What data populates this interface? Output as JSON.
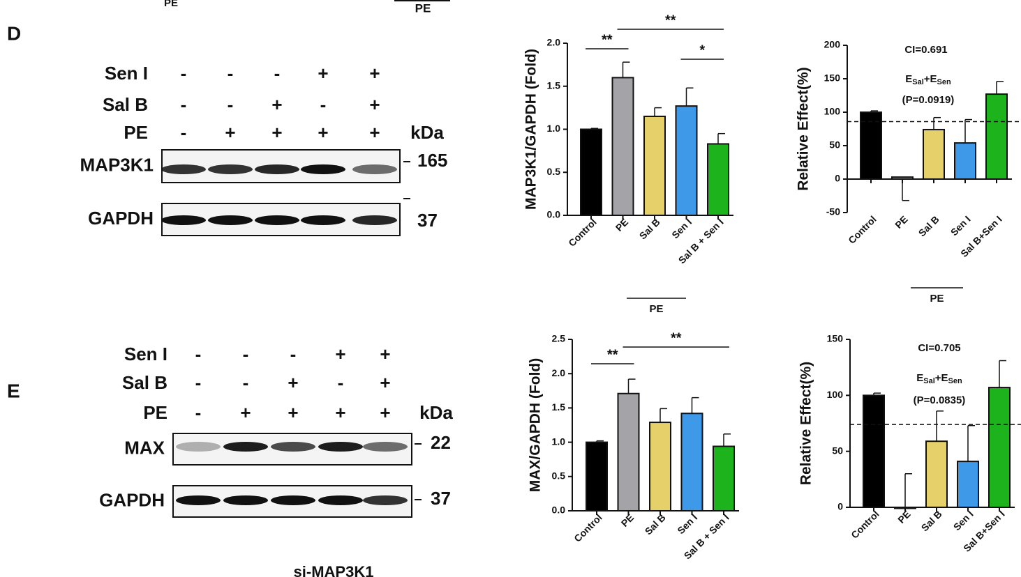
{
  "fragments": [
    "PE",
    "PE",
    "si-MAP3K1"
  ],
  "blots": [
    {
      "panel": "D",
      "unit": "kDa",
      "rows": [
        {
          "label": "Sen I",
          "signs": [
            "-",
            "-",
            "-",
            "+",
            "+"
          ]
        },
        {
          "label": "Sal B",
          "signs": [
            "-",
            "-",
            "+",
            "-",
            "+"
          ]
        },
        {
          "label": "PE",
          "signs": [
            "-",
            "+",
            "+",
            "+",
            "+"
          ]
        }
      ],
      "bands": [
        {
          "label": "MAP3K1",
          "marker": "165"
        },
        {
          "label": "GAPDH",
          "marker": "37"
        }
      ]
    },
    {
      "panel": "E",
      "unit": "kDa",
      "rows": [
        {
          "label": "Sen I",
          "signs": [
            "-",
            "-",
            "-",
            "+",
            "+"
          ]
        },
        {
          "label": "Sal B",
          "signs": [
            "-",
            "-",
            "+",
            "-",
            "+"
          ]
        },
        {
          "label": "PE",
          "signs": [
            "-",
            "+",
            "+",
            "+",
            "+"
          ]
        }
      ],
      "bands": [
        {
          "label": "MAX",
          "marker": "22"
        },
        {
          "label": "GAPDH",
          "marker": "37"
        }
      ]
    }
  ],
  "chart_data": [
    {
      "type": "bar",
      "y_label": "MAP3K1/GAPDH (Fold)",
      "categories": [
        "Control",
        "PE",
        "Sal B",
        "Sen I",
        "Sal B + Sen I"
      ],
      "values": [
        1.0,
        1.6,
        1.15,
        1.27,
        0.83
      ],
      "errors": [
        0.01,
        0.18,
        0.1,
        0.21,
        0.12
      ],
      "colors": [
        "#000000",
        "#a3a3a8",
        "#e6d06a",
        "#3e9ae8",
        "#1db31d"
      ],
      "ylim": [
        0,
        2.0
      ],
      "yticks": [
        {
          "value": 0,
          "label": "0.0"
        },
        {
          "value": 0.5,
          "label": "0.5"
        },
        {
          "value": 1.0,
          "label": "1.0"
        },
        {
          "value": 1.5,
          "label": "1.5"
        },
        {
          "value": 2.0,
          "label": "2.0"
        }
      ],
      "significance": [
        "**",
        "**",
        "*"
      ],
      "group_label": "PE"
    },
    {
      "type": "bar",
      "y_label": "Relative Effect(%)",
      "categories": [
        "Control",
        "PE",
        "Sal B",
        "Sen I",
        "Sal B+Sen I"
      ],
      "values": [
        100,
        3,
        74,
        54,
        127
      ],
      "errors": [
        2,
        35,
        18,
        35,
        19
      ],
      "colors": [
        "#000000",
        "#a3a3a8",
        "#e6d06a",
        "#3e9ae8",
        "#1db31d"
      ],
      "ylim": [
        -50,
        200
      ],
      "yticks": [
        -50,
        0,
        50,
        100,
        150,
        200
      ],
      "reference_line": 86,
      "note": "CI=0.691",
      "effect_label": [
        "E",
        "Sal",
        "+E",
        "Sen"
      ],
      "p_value": "(P=0.0919)",
      "group_label": "PE"
    },
    {
      "type": "bar",
      "y_label": "MAX/GAPDH (Fold)",
      "categories": [
        "Control",
        "PE",
        "Sal B",
        "Sen I",
        "Sal B + Sen I"
      ],
      "values": [
        1.0,
        1.71,
        1.29,
        1.42,
        0.94
      ],
      "errors": [
        0.02,
        0.21,
        0.2,
        0.23,
        0.18
      ],
      "colors": [
        "#000000",
        "#a3a3a8",
        "#e6d06a",
        "#3e9ae8",
        "#1db31d"
      ],
      "ylim": [
        0,
        2.5
      ],
      "yticks": [
        {
          "value": 0,
          "label": "0.0"
        },
        {
          "value": 0.5,
          "label": "0.5"
        },
        {
          "value": 1.0,
          "label": "1.0"
        },
        {
          "value": 1.5,
          "label": "1.5"
        },
        {
          "value": 2.0,
          "label": "2.0"
        },
        {
          "value": 2.5,
          "label": "2.5"
        }
      ],
      "significance": [
        "**",
        "**"
      ]
    },
    {
      "type": "bar",
      "y_label": "Relative Effect(%)",
      "categories": [
        "Control",
        "PE",
        "Sal B",
        "Sen I",
        "Sal B+Sen I"
      ],
      "values": [
        100,
        0,
        59,
        41,
        107
      ],
      "errors": [
        2,
        30,
        27,
        32,
        24
      ],
      "colors": [
        "#000000",
        "#a3a3a8",
        "#e6d06a",
        "#3e9ae8",
        "#1db31d"
      ],
      "ylim": [
        0,
        150
      ],
      "yticks": [
        0,
        50,
        100,
        150
      ],
      "reference_line": 74,
      "note": "CI=0.705",
      "effect_label": [
        "E",
        "Sal",
        "+E",
        "Sen"
      ],
      "p_value": "(P=0.0835)"
    }
  ]
}
